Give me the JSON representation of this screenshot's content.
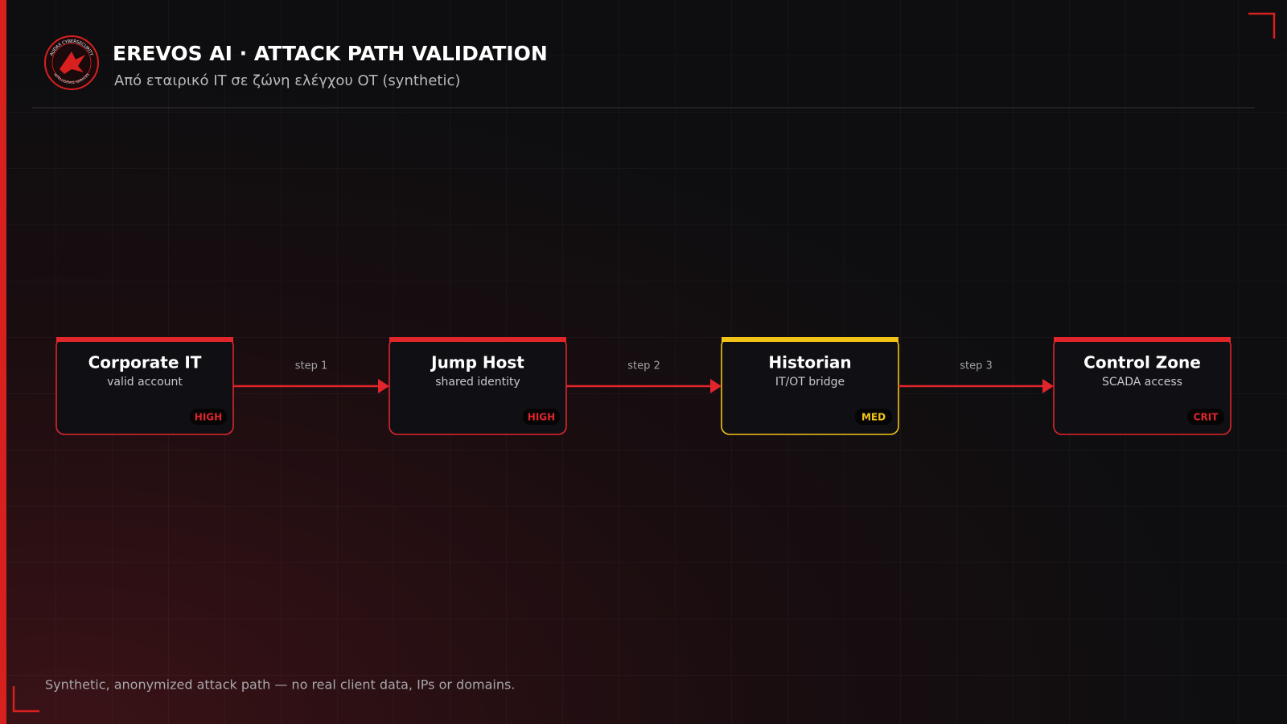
{
  "header": {
    "title": "EREVOS AI · ATTACK PATH VALIDATION",
    "subtitle": "Από εταιρικό IT σε ζώνη ελέγχου OT (synthetic)",
    "logo_top": "AUDAX CYBERSECURITY",
    "logo_bottom": "INTELLIGENCE SERVICES"
  },
  "nodes": [
    {
      "title": "Corporate IT",
      "subtitle": "valid account",
      "severity": "HIGH",
      "color": "#e0252b"
    },
    {
      "title": "Jump Host",
      "subtitle": "shared identity",
      "severity": "HIGH",
      "color": "#e0252b"
    },
    {
      "title": "Historian",
      "subtitle": "IT/OT bridge",
      "severity": "MED",
      "color": "#f2c417"
    },
    {
      "title": "Control Zone",
      "subtitle": "SCADA access",
      "severity": "CRIT",
      "color": "#e0252b"
    }
  ],
  "edges": [
    {
      "label": "step 1"
    },
    {
      "label": "step 2"
    },
    {
      "label": "step 3"
    }
  ],
  "footer": {
    "note": "Synthetic, anonymized attack path — no real client data, IPs or domains."
  }
}
